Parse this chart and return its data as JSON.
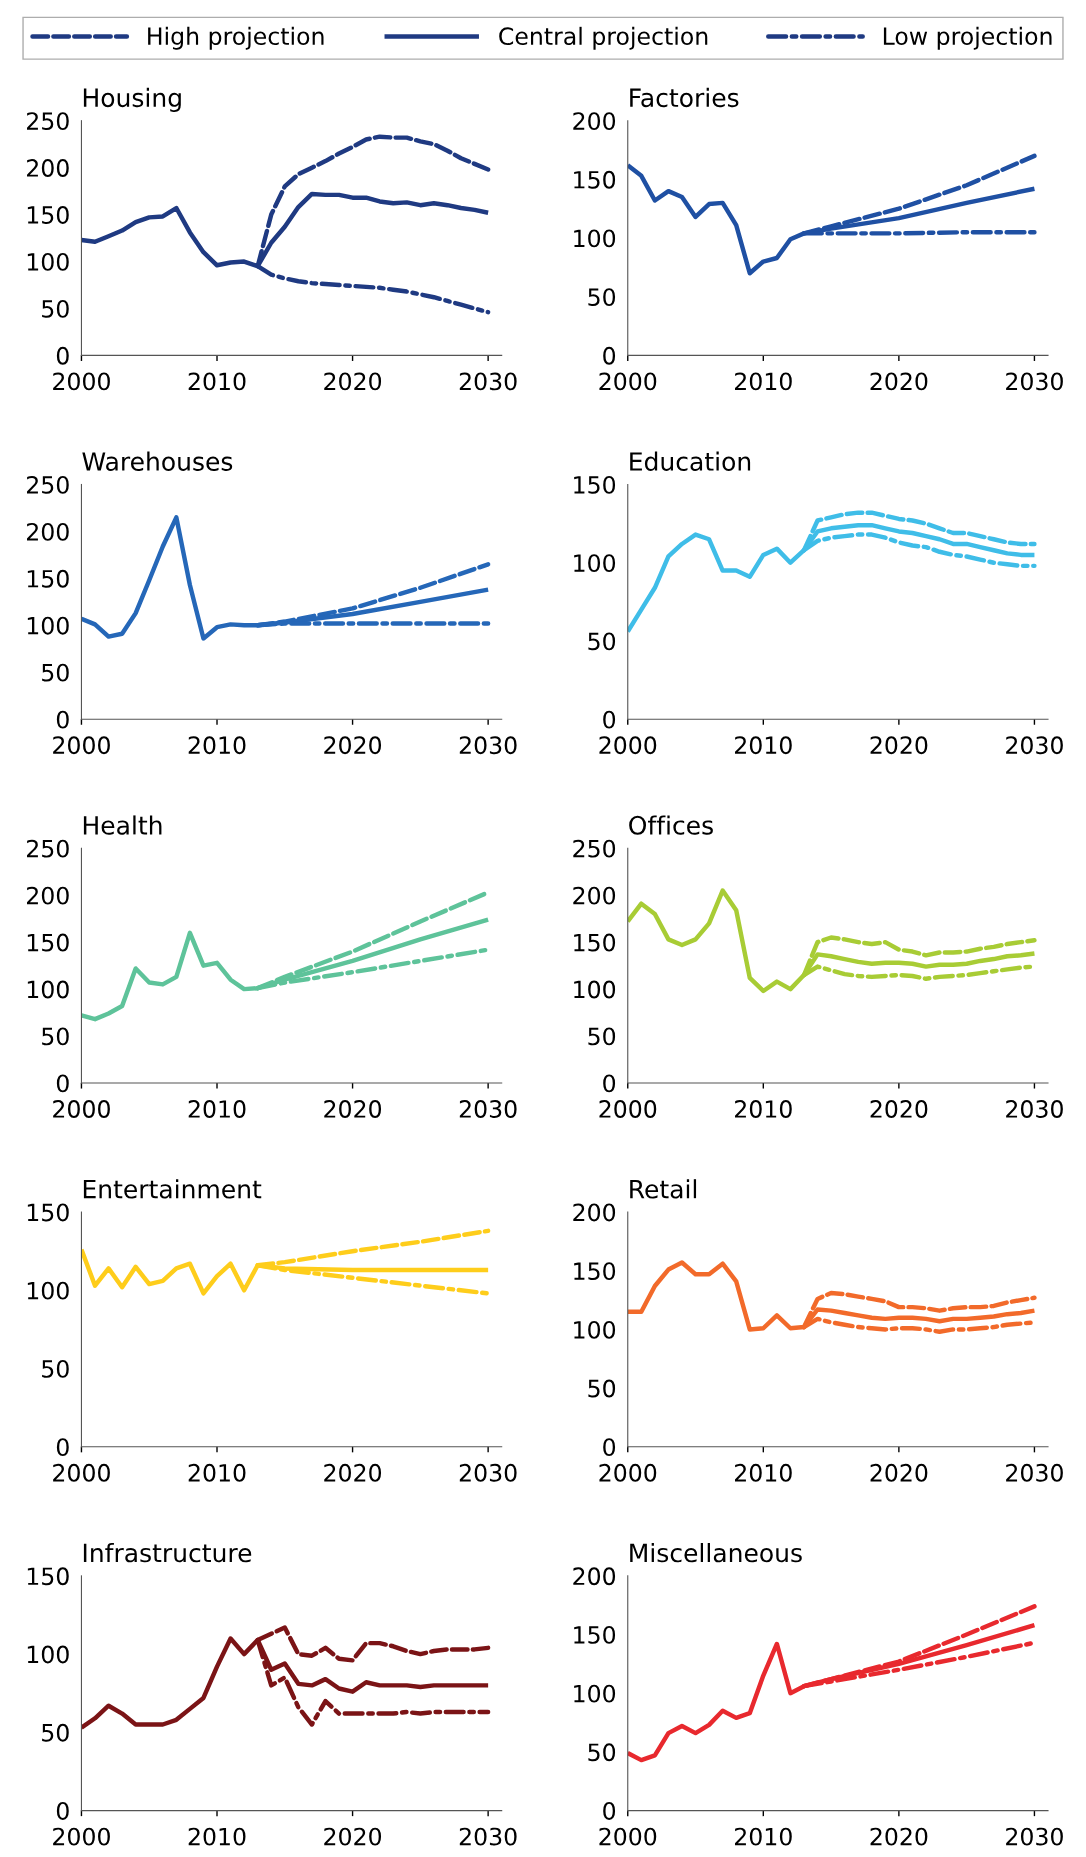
{
  "chart_data": [
    {
      "type": "line",
      "title": "Housing",
      "legend": "top",
      "xlim": [
        2000,
        2031
      ],
      "xticks": [
        2000,
        2010,
        2020,
        2030
      ],
      "ylim": [
        0,
        250
      ],
      "yticks": [
        0,
        50,
        100,
        150,
        200,
        250
      ],
      "series": [
        {
          "name": "High projection",
          "color": "#1f3a82",
          "line_style": "dashed",
          "x": [
            2013,
            2014,
            2015,
            2016,
            2017,
            2018,
            2019,
            2020,
            2021,
            2022,
            2023,
            2024,
            2025,
            2026,
            2027,
            2028,
            2029,
            2030
          ],
          "values": [
            95,
            150,
            180,
            193,
            200,
            207,
            215,
            222,
            230,
            233,
            232,
            232,
            228,
            225,
            218,
            210,
            204,
            198
          ]
        },
        {
          "name": "Central projection",
          "color": "#1f3a82",
          "line_style": "solid",
          "x": [
            2000,
            2001,
            2002,
            2003,
            2004,
            2005,
            2006,
            2007,
            2008,
            2009,
            2010,
            2011,
            2012,
            2013,
            2014,
            2015,
            2016,
            2017,
            2018,
            2019,
            2020,
            2021,
            2022,
            2023,
            2024,
            2025,
            2026,
            2027,
            2028,
            2029,
            2030
          ],
          "values": [
            123,
            121,
            127,
            133,
            142,
            147,
            148,
            157,
            131,
            110,
            96,
            99,
            100,
            95,
            120,
            137,
            158,
            172,
            171,
            171,
            168,
            168,
            164,
            162,
            163,
            160,
            162,
            160,
            157,
            155,
            152
          ]
        },
        {
          "name": "Low projection",
          "color": "#1f3a82",
          "line_style": "dashdot",
          "x": [
            2013,
            2014,
            2015,
            2016,
            2017,
            2018,
            2019,
            2020,
            2021,
            2022,
            2023,
            2024,
            2025,
            2026,
            2027,
            2028,
            2029,
            2030
          ],
          "values": [
            95,
            86,
            82,
            79,
            77,
            76,
            75,
            74,
            73,
            72,
            70,
            68,
            65,
            62,
            58,
            54,
            50,
            46
          ]
        }
      ]
    },
    {
      "type": "line",
      "title": "Factories",
      "xlim": [
        2000,
        2031
      ],
      "xticks": [
        2000,
        2010,
        2020,
        2030
      ],
      "ylim": [
        0,
        200
      ],
      "yticks": [
        0,
        50,
        100,
        150,
        200
      ],
      "series": [
        {
          "color": "#1f50a3",
          "line_style": "dashed",
          "x": [
            2013,
            2015,
            2020,
            2025,
            2030
          ],
          "values": [
            104,
            110,
            125,
            145,
            170
          ]
        },
        {
          "color": "#1f50a3",
          "line_style": "solid",
          "x": [
            2000,
            2001,
            2002,
            2003,
            2004,
            2005,
            2006,
            2007,
            2008,
            2009,
            2010,
            2011,
            2012,
            2013,
            2015,
            2020,
            2025,
            2030
          ],
          "values": [
            162,
            153,
            132,
            140,
            135,
            118,
            129,
            130,
            111,
            70,
            80,
            83,
            99,
            104,
            108,
            117,
            130,
            142
          ]
        },
        {
          "color": "#1f50a3",
          "line_style": "dashdot",
          "x": [
            2013,
            2015,
            2020,
            2025,
            2030
          ],
          "values": [
            104,
            104,
            104,
            105,
            105
          ]
        }
      ]
    },
    {
      "type": "line",
      "title": "Warehouses",
      "xlim": [
        2000,
        2031
      ],
      "xticks": [
        2000,
        2010,
        2020,
        2030
      ],
      "ylim": [
        0,
        250
      ],
      "yticks": [
        0,
        50,
        100,
        150,
        200,
        250
      ],
      "series": [
        {
          "color": "#2567b8",
          "line_style": "dashed",
          "x": [
            2013,
            2015,
            2020,
            2025,
            2030
          ],
          "values": [
            100,
            104,
            118,
            140,
            165
          ]
        },
        {
          "color": "#2567b8",
          "line_style": "solid",
          "x": [
            2000,
            2001,
            2002,
            2003,
            2004,
            2005,
            2006,
            2007,
            2008,
            2009,
            2010,
            2011,
            2012,
            2013,
            2015,
            2020,
            2025,
            2030
          ],
          "values": [
            107,
            101,
            88,
            91,
            113,
            148,
            184,
            215,
            143,
            86,
            98,
            101,
            100,
            100,
            103,
            112,
            125,
            138
          ]
        },
        {
          "color": "#2567b8",
          "line_style": "dashdot",
          "x": [
            2013,
            2015,
            2020,
            2025,
            2030
          ],
          "values": [
            100,
            102,
            102,
            102,
            102
          ]
        }
      ]
    },
    {
      "type": "line",
      "title": "Education",
      "xlim": [
        2000,
        2031
      ],
      "xticks": [
        2000,
        2010,
        2020,
        2030
      ],
      "ylim": [
        0,
        150
      ],
      "yticks": [
        0,
        50,
        100,
        150
      ],
      "series": [
        {
          "color": "#3fbde8",
          "line_style": "dashed",
          "x": [
            2013,
            2014,
            2015,
            2016,
            2017,
            2018,
            2019,
            2020,
            2021,
            2022,
            2023,
            2024,
            2025,
            2026,
            2027,
            2028,
            2029,
            2030
          ],
          "values": [
            108,
            127,
            129,
            131,
            132,
            132,
            130,
            128,
            127,
            125,
            122,
            119,
            119,
            117,
            115,
            113,
            112,
            112
          ]
        },
        {
          "color": "#3fbde8",
          "line_style": "solid",
          "x": [
            2000,
            2001,
            2002,
            2003,
            2004,
            2005,
            2006,
            2007,
            2008,
            2009,
            2010,
            2011,
            2012,
            2013,
            2014,
            2015,
            2016,
            2017,
            2018,
            2019,
            2020,
            2021,
            2022,
            2023,
            2024,
            2025,
            2026,
            2027,
            2028,
            2029,
            2030
          ],
          "values": [
            56,
            70,
            84,
            104,
            112,
            118,
            115,
            95,
            95,
            91,
            105,
            109,
            100,
            108,
            120,
            122,
            123,
            124,
            124,
            122,
            120,
            119,
            117,
            115,
            112,
            112,
            110,
            108,
            106,
            105,
            105
          ]
        },
        {
          "color": "#3fbde8",
          "line_style": "dashdot",
          "x": [
            2013,
            2014,
            2015,
            2016,
            2017,
            2018,
            2019,
            2020,
            2021,
            2022,
            2023,
            2024,
            2025,
            2026,
            2027,
            2028,
            2029,
            2030
          ],
          "values": [
            108,
            114,
            116,
            117,
            118,
            118,
            116,
            113,
            111,
            110,
            107,
            105,
            104,
            102,
            100,
            99,
            98,
            98
          ]
        }
      ]
    },
    {
      "type": "line",
      "title": "Health",
      "xlim": [
        2000,
        2031
      ],
      "xticks": [
        2000,
        2010,
        2020,
        2030
      ],
      "ylim": [
        0,
        250
      ],
      "yticks": [
        0,
        50,
        100,
        150,
        200,
        250
      ],
      "series": [
        {
          "color": "#5ec39a",
          "line_style": "dashed",
          "x": [
            2013,
            2015,
            2020,
            2025,
            2030
          ],
          "values": [
            101,
            113,
            140,
            172,
            203
          ]
        },
        {
          "color": "#5ec39a",
          "line_style": "solid",
          "x": [
            2000,
            2001,
            2002,
            2003,
            2004,
            2005,
            2006,
            2007,
            2008,
            2009,
            2010,
            2011,
            2012,
            2013,
            2015,
            2020,
            2025,
            2030
          ],
          "values": [
            72,
            68,
            74,
            82,
            122,
            107,
            105,
            113,
            160,
            125,
            128,
            110,
            100,
            101,
            110,
            130,
            153,
            174
          ]
        },
        {
          "color": "#5ec39a",
          "line_style": "dashdot",
          "x": [
            2013,
            2015,
            2020,
            2025,
            2030
          ],
          "values": [
            101,
            107,
            118,
            130,
            142
          ]
        }
      ]
    },
    {
      "type": "line",
      "title": "Offices",
      "xlim": [
        2000,
        2031
      ],
      "xticks": [
        2000,
        2010,
        2020,
        2030
      ],
      "ylim": [
        0,
        250
      ],
      "yticks": [
        0,
        50,
        100,
        150,
        200,
        250
      ],
      "series": [
        {
          "color": "#a8cc35",
          "line_style": "dashed",
          "x": [
            2013,
            2014,
            2015,
            2016,
            2017,
            2018,
            2019,
            2020,
            2021,
            2022,
            2023,
            2024,
            2025,
            2026,
            2027,
            2028,
            2029,
            2030
          ],
          "values": [
            115,
            150,
            155,
            153,
            150,
            148,
            150,
            142,
            140,
            136,
            139,
            139,
            140,
            143,
            145,
            148,
            150,
            152
          ]
        },
        {
          "color": "#a8cc35",
          "line_style": "solid",
          "x": [
            2000,
            2001,
            2002,
            2003,
            2004,
            2005,
            2006,
            2007,
            2008,
            2009,
            2010,
            2011,
            2012,
            2013,
            2014,
            2015,
            2016,
            2017,
            2018,
            2019,
            2020,
            2021,
            2022,
            2023,
            2024,
            2025,
            2026,
            2027,
            2028,
            2029,
            2030
          ],
          "values": [
            172,
            191,
            180,
            153,
            147,
            153,
            170,
            205,
            184,
            112,
            98,
            108,
            100,
            115,
            137,
            135,
            132,
            129,
            127,
            128,
            128,
            127,
            124,
            126,
            126,
            127,
            130,
            132,
            135,
            136,
            138
          ]
        },
        {
          "color": "#a8cc35",
          "line_style": "dashdot",
          "x": [
            2013,
            2014,
            2015,
            2016,
            2017,
            2018,
            2019,
            2020,
            2021,
            2022,
            2023,
            2024,
            2025,
            2026,
            2027,
            2028,
            2029,
            2030
          ],
          "values": [
            115,
            124,
            120,
            116,
            114,
            113,
            114,
            115,
            114,
            111,
            113,
            114,
            115,
            117,
            119,
            121,
            123,
            124
          ]
        }
      ]
    },
    {
      "type": "line",
      "title": "Entertainment",
      "xlim": [
        2000,
        2031
      ],
      "xticks": [
        2000,
        2010,
        2020,
        2030
      ],
      "ylim": [
        0,
        150
      ],
      "yticks": [
        0,
        50,
        100,
        150
      ],
      "series": [
        {
          "color": "#fecd1b",
          "line_style": "dashed",
          "x": [
            2013,
            2015,
            2020,
            2025,
            2030
          ],
          "values": [
            116,
            118,
            125,
            131,
            138
          ]
        },
        {
          "color": "#fecd1b",
          "line_style": "solid",
          "x": [
            2000,
            2001,
            2002,
            2003,
            2004,
            2005,
            2006,
            2007,
            2008,
            2009,
            2010,
            2011,
            2012,
            2013,
            2015,
            2020,
            2025,
            2030
          ],
          "values": [
            126,
            103,
            114,
            102,
            115,
            104,
            106,
            114,
            117,
            98,
            109,
            117,
            100,
            116,
            114,
            113,
            113,
            113
          ]
        },
        {
          "color": "#fecd1b",
          "line_style": "dashdot",
          "x": [
            2013,
            2015,
            2020,
            2025,
            2030
          ],
          "values": [
            116,
            113,
            108,
            103,
            98
          ]
        }
      ]
    },
    {
      "type": "line",
      "title": "Retail",
      "xlim": [
        2000,
        2031
      ],
      "xticks": [
        2000,
        2010,
        2020,
        2030
      ],
      "ylim": [
        0,
        200
      ],
      "yticks": [
        0,
        50,
        100,
        150,
        200
      ],
      "series": [
        {
          "color": "#f26a2a",
          "line_style": "dashed",
          "x": [
            2013,
            2014,
            2015,
            2016,
            2017,
            2018,
            2019,
            2020,
            2021,
            2022,
            2023,
            2024,
            2025,
            2026,
            2027,
            2028,
            2029,
            2030
          ],
          "values": [
            102,
            126,
            131,
            130,
            128,
            126,
            124,
            119,
            119,
            118,
            116,
            118,
            119,
            119,
            120,
            123,
            125,
            127
          ]
        },
        {
          "color": "#f26a2a",
          "line_style": "solid",
          "x": [
            2000,
            2001,
            2002,
            2003,
            2004,
            2005,
            2006,
            2007,
            2008,
            2009,
            2010,
            2011,
            2012,
            2013,
            2014,
            2015,
            2016,
            2017,
            2018,
            2019,
            2020,
            2021,
            2022,
            2023,
            2024,
            2025,
            2026,
            2027,
            2028,
            2029,
            2030
          ],
          "values": [
            115,
            115,
            137,
            151,
            157,
            147,
            147,
            156,
            141,
            100,
            101,
            112,
            101,
            102,
            117,
            116,
            114,
            112,
            110,
            109,
            110,
            110,
            109,
            107,
            109,
            109,
            110,
            111,
            113,
            114,
            116
          ]
        },
        {
          "color": "#f26a2a",
          "line_style": "dashdot",
          "x": [
            2013,
            2014,
            2015,
            2016,
            2017,
            2018,
            2019,
            2020,
            2021,
            2022,
            2023,
            2024,
            2025,
            2026,
            2027,
            2028,
            2029,
            2030
          ],
          "values": [
            102,
            109,
            106,
            104,
            102,
            101,
            100,
            101,
            101,
            100,
            98,
            100,
            100,
            101,
            102,
            104,
            105,
            106
          ]
        }
      ]
    },
    {
      "type": "line",
      "title": "Infrastructure",
      "xlim": [
        2000,
        2031
      ],
      "xticks": [
        2000,
        2010,
        2020,
        2030
      ],
      "ylim": [
        0,
        150
      ],
      "yticks": [
        0,
        50,
        100,
        150
      ],
      "series": [
        {
          "color": "#7b1416",
          "line_style": "dashed",
          "x": [
            2013,
            2014,
            2015,
            2016,
            2017,
            2018,
            2019,
            2020,
            2021,
            2022,
            2023,
            2024,
            2025,
            2026,
            2027,
            2028,
            2029,
            2030
          ],
          "values": [
            109,
            113,
            117,
            100,
            99,
            104,
            97,
            96,
            107,
            107,
            105,
            102,
            100,
            102,
            103,
            103,
            103,
            104
          ]
        },
        {
          "color": "#7b1416",
          "line_style": "solid",
          "x": [
            2000,
            2001,
            2002,
            2003,
            2004,
            2005,
            2006,
            2007,
            2008,
            2009,
            2010,
            2011,
            2012,
            2013,
            2014,
            2015,
            2016,
            2017,
            2018,
            2019,
            2020,
            2021,
            2022,
            2023,
            2024,
            2025,
            2026,
            2027,
            2028,
            2029,
            2030
          ],
          "values": [
            53,
            59,
            67,
            62,
            55,
            55,
            55,
            58,
            65,
            72,
            92,
            110,
            100,
            109,
            90,
            94,
            81,
            80,
            84,
            78,
            76,
            82,
            80,
            80,
            80,
            79,
            80,
            80,
            80,
            80,
            80
          ]
        },
        {
          "color": "#7b1416",
          "line_style": "dashdot",
          "x": [
            2013,
            2014,
            2015,
            2016,
            2017,
            2018,
            2019,
            2020,
            2021,
            2022,
            2023,
            2024,
            2025,
            2026,
            2027,
            2028,
            2029,
            2030
          ],
          "values": [
            109,
            80,
            85,
            66,
            55,
            70,
            62,
            62,
            62,
            62,
            62,
            63,
            62,
            63,
            63,
            63,
            63,
            63
          ]
        }
      ]
    },
    {
      "type": "line",
      "title": "Miscellaneous",
      "xlim": [
        2000,
        2031
      ],
      "xticks": [
        2000,
        2010,
        2020,
        2030
      ],
      "ylim": [
        0,
        200
      ],
      "yticks": [
        0,
        50,
        100,
        150,
        200
      ],
      "series": [
        {
          "color": "#e8292e",
          "line_style": "dashed",
          "x": [
            2013,
            2015,
            2020,
            2025,
            2030
          ],
          "values": [
            106,
            112,
            127,
            150,
            174
          ]
        },
        {
          "color": "#e8292e",
          "line_style": "solid",
          "x": [
            2000,
            2001,
            2002,
            2003,
            2004,
            2005,
            2006,
            2007,
            2008,
            2009,
            2010,
            2011,
            2012,
            2013,
            2015,
            2020,
            2025,
            2030
          ],
          "values": [
            49,
            43,
            47,
            66,
            72,
            66,
            73,
            85,
            79,
            83,
            115,
            142,
            100,
            106,
            112,
            125,
            141,
            158
          ]
        },
        {
          "color": "#e8292e",
          "line_style": "dashdot",
          "x": [
            2013,
            2015,
            2020,
            2025,
            2030
          ],
          "values": [
            106,
            110,
            120,
            131,
            143
          ]
        }
      ]
    }
  ]
}
